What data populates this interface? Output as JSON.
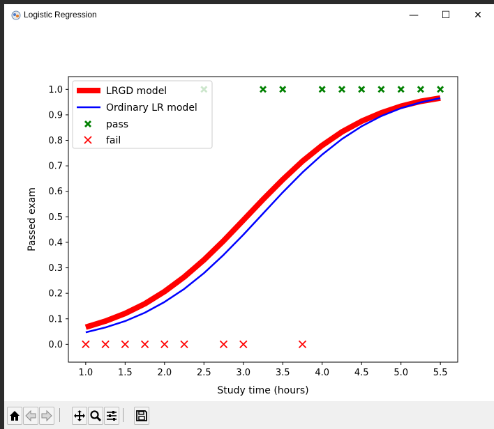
{
  "window": {
    "title": "Logistic Regression",
    "minimize": "—",
    "maximize": "☐",
    "close": "✕"
  },
  "toolbar": {
    "buttons": [
      {
        "name": "home-icon"
      },
      {
        "name": "back-arrow-icon"
      },
      {
        "name": "forward-arrow-icon"
      },
      {
        "name": "pan-icon"
      },
      {
        "name": "zoom-icon"
      },
      {
        "name": "configure-subplots-icon"
      },
      {
        "name": "save-icon"
      }
    ]
  },
  "chart_data": {
    "type": "scatter",
    "xlabel": "Study time (hours)",
    "ylabel": "Passed exam",
    "xlim": [
      0.78,
      5.72
    ],
    "ylim": [
      -0.07,
      1.05
    ],
    "xticks": [
      "1.0",
      "1.5",
      "2.0",
      "2.5",
      "3.0",
      "3.5",
      "4.0",
      "4.5",
      "5.0",
      "5.5"
    ],
    "yticks": [
      "0.0",
      "0.1",
      "0.2",
      "0.3",
      "0.4",
      "0.5",
      "0.6",
      "0.7",
      "0.8",
      "0.9",
      "1.0"
    ],
    "legend_position": "upper left",
    "curves": [
      {
        "name": "LRGD model",
        "color": "#ff0000",
        "x": [
          1.0,
          1.25,
          1.5,
          1.75,
          2.0,
          2.25,
          2.5,
          2.75,
          3.0,
          3.25,
          3.5,
          3.75,
          4.0,
          4.25,
          4.5,
          4.75,
          5.0,
          5.25,
          5.5
        ],
        "y": [
          0.067,
          0.091,
          0.121,
          0.159,
          0.207,
          0.264,
          0.331,
          0.406,
          0.487,
          0.568,
          0.646,
          0.718,
          0.78,
          0.833,
          0.875,
          0.908,
          0.934,
          0.953,
          0.966
        ]
      },
      {
        "name": "Ordinary LR model",
        "color": "#0000ff",
        "x": [
          1.0,
          1.25,
          1.5,
          1.75,
          2.0,
          2.25,
          2.5,
          2.75,
          3.0,
          3.25,
          3.5,
          3.75,
          4.0,
          4.25,
          4.5,
          4.75,
          5.0,
          5.25,
          5.5
        ],
        "y": [
          0.047,
          0.066,
          0.091,
          0.124,
          0.166,
          0.217,
          0.279,
          0.351,
          0.43,
          0.513,
          0.596,
          0.674,
          0.744,
          0.805,
          0.855,
          0.895,
          0.926,
          0.949,
          0.966
        ]
      }
    ],
    "scatter": [
      {
        "name": "pass",
        "color": "#008000",
        "marker": "X",
        "x": [
          2.5,
          3.25,
          3.5,
          4.0,
          4.25,
          4.5,
          4.75,
          5.0,
          5.25,
          5.5
        ],
        "y": [
          1,
          1,
          1,
          1,
          1,
          1,
          1,
          1,
          1,
          1
        ]
      },
      {
        "name": "fail",
        "color": "#ff0000",
        "marker": "x",
        "x": [
          1.0,
          1.25,
          1.5,
          1.75,
          2.0,
          2.25,
          2.75,
          3.0,
          3.75
        ],
        "y": [
          0,
          0,
          0,
          0,
          0,
          0,
          0,
          0,
          0
        ]
      }
    ]
  }
}
